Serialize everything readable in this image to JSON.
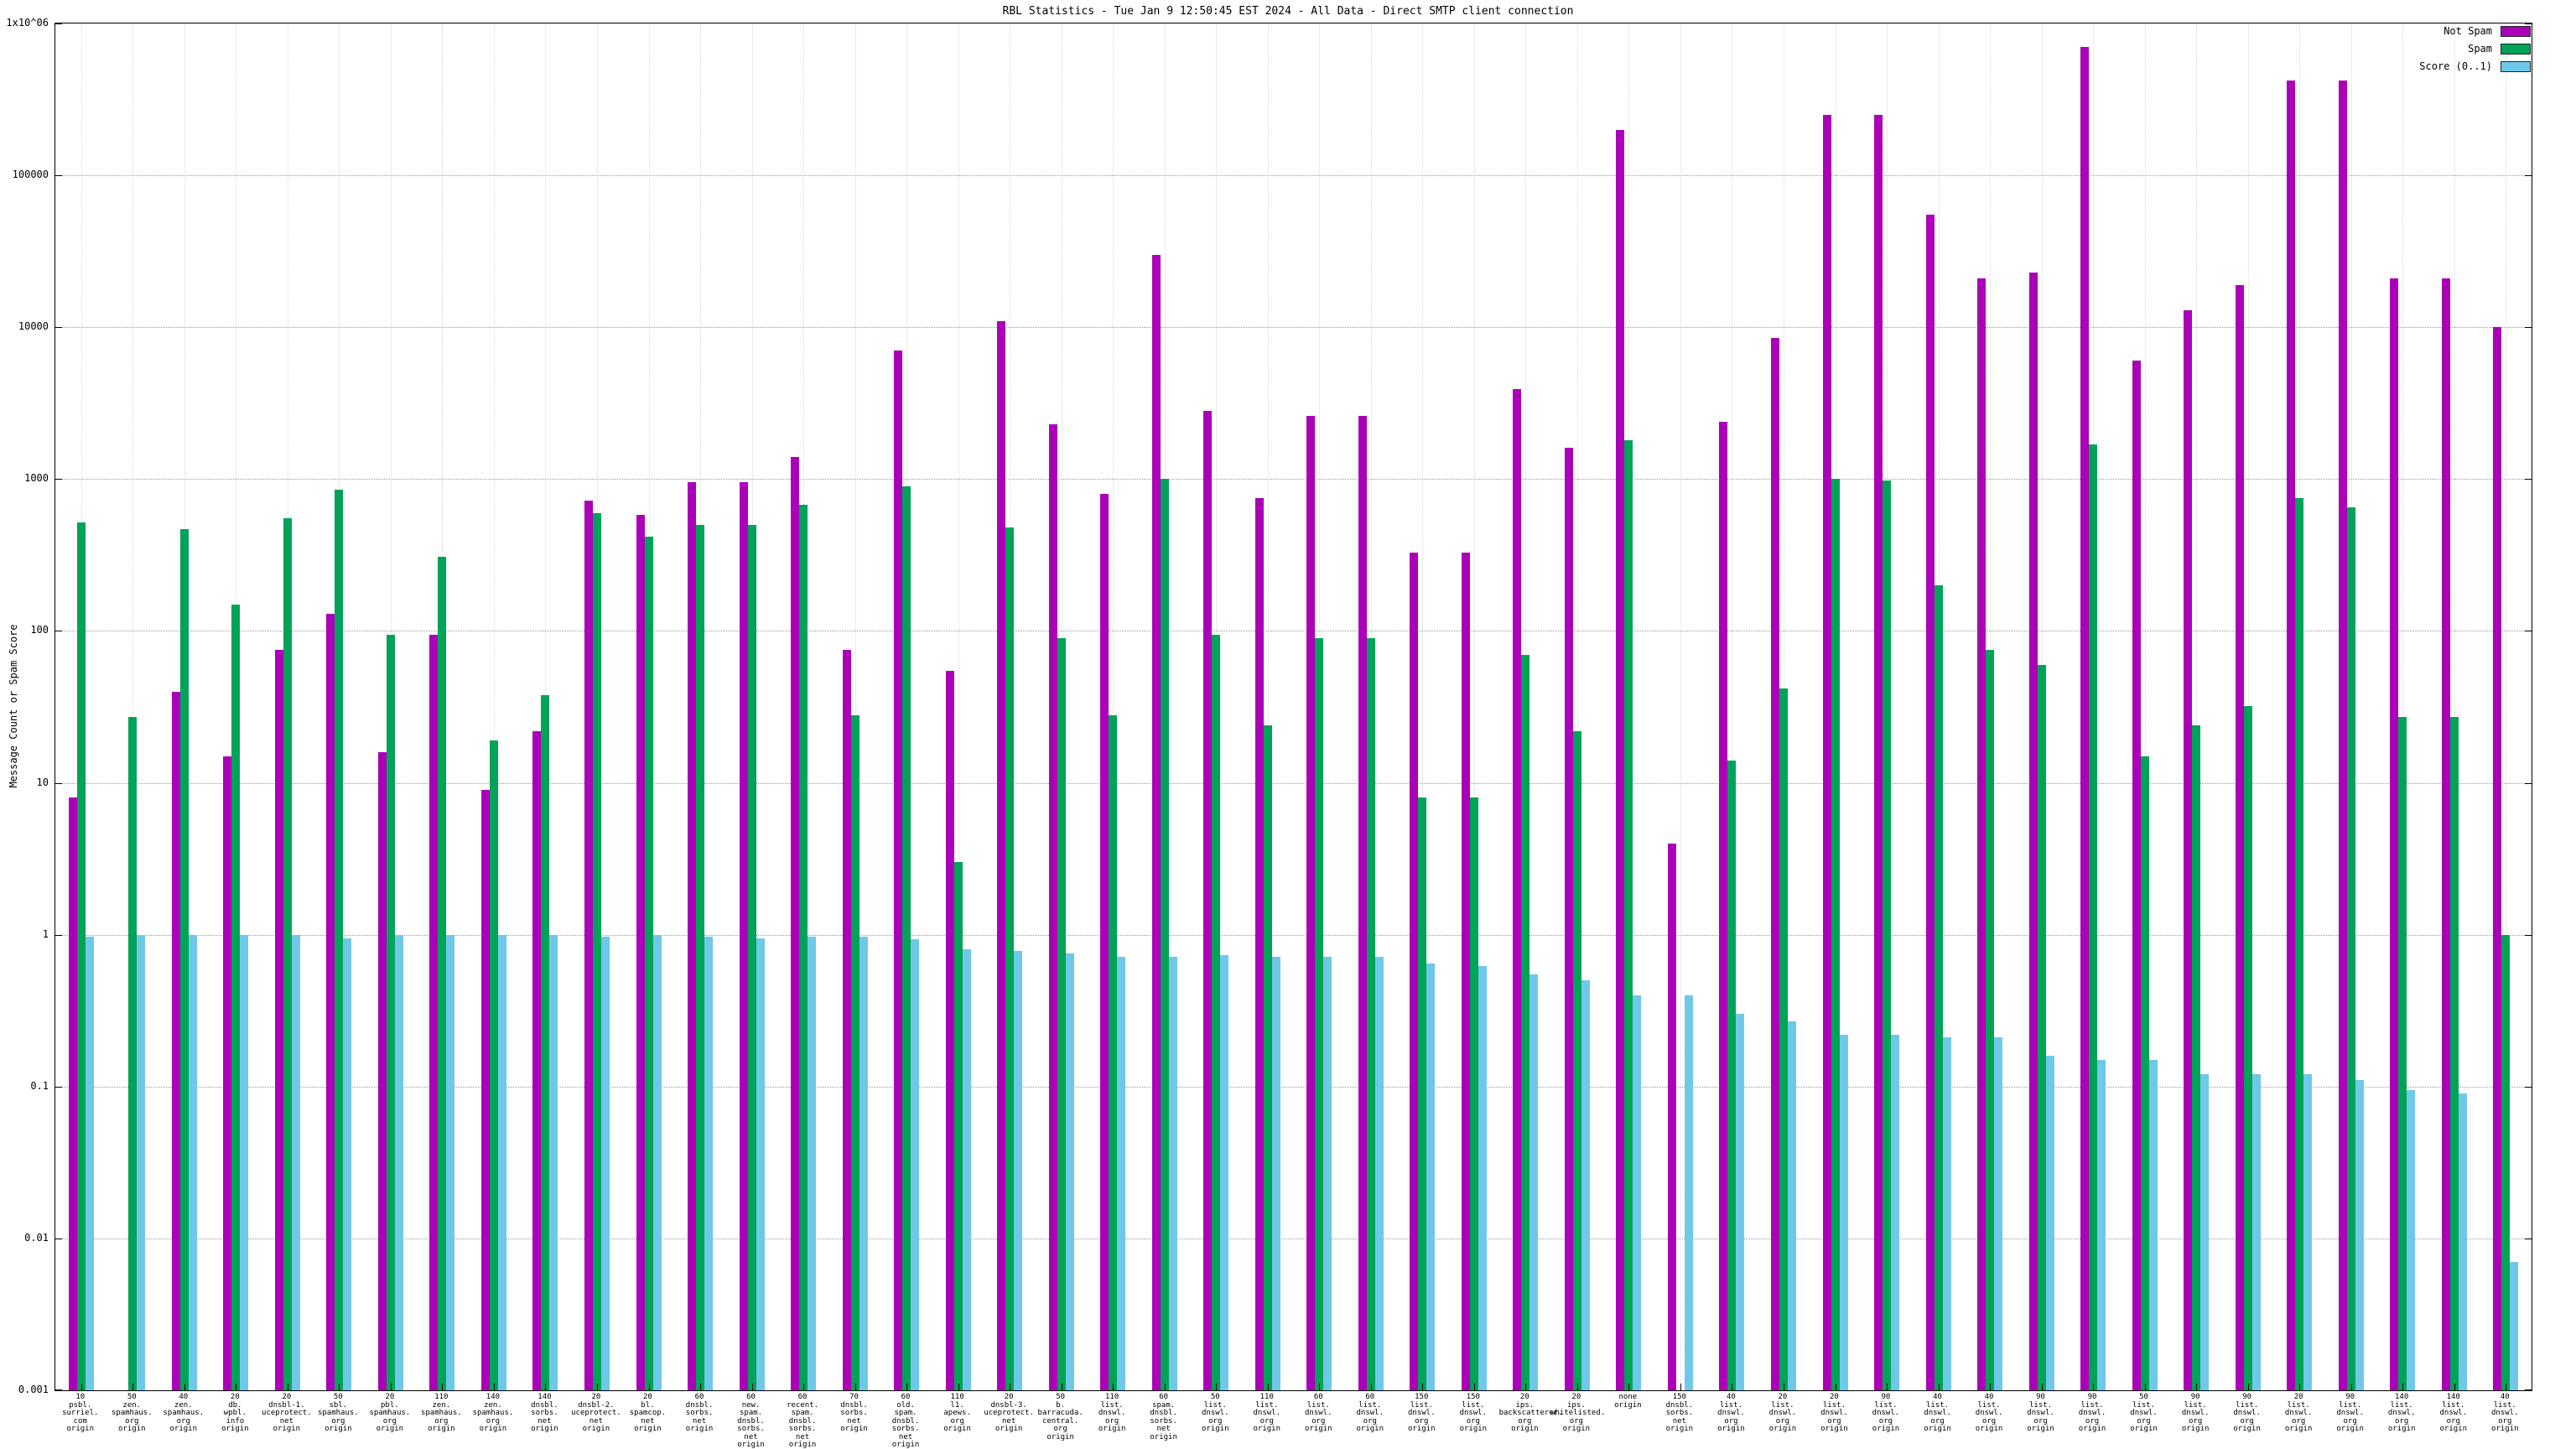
{
  "chart_data": {
    "type": "bar",
    "title": "RBL Statistics - Tue Jan 9 12:50:45 EST 2024 - All Data - Direct SMTP client connection",
    "ylabel": "Message Count or Spam Score",
    "xlabel": "",
    "yscale": "log",
    "ylim": [
      0.001,
      1000000
    ],
    "grid": true,
    "legend_position": "top-right",
    "series": [
      {
        "key": "not-spam",
        "name": "Not Spam",
        "color": "#AB00B8"
      },
      {
        "key": "spam",
        "name": "Spam",
        "color": "#00A357"
      },
      {
        "key": "score",
        "name": "Score (0..1)",
        "color": "#70C8E8"
      }
    ],
    "yticks": [
      {
        "label": "1x10^06",
        "value": 1000000
      },
      {
        "label": "100000",
        "value": 100000
      },
      {
        "label": "10000",
        "value": 10000
      },
      {
        "label": "1000",
        "value": 1000
      },
      {
        "label": "100",
        "value": 100
      },
      {
        "label": "10",
        "value": 10
      },
      {
        "label": "1",
        "value": 1
      },
      {
        "label": "0.1",
        "value": 0.1
      },
      {
        "label": "0.01",
        "value": 0.01
      },
      {
        "label": "0.001",
        "value": 0.001
      }
    ],
    "groups": [
      {
        "label": [
          "10",
          "psbl.",
          "surriel.",
          "com",
          "origin"
        ],
        "not_spam": 8,
        "spam": 520,
        "score": 0.97
      },
      {
        "label": [
          "50",
          "zen.",
          "spamhaus.",
          "org",
          "origin"
        ],
        "not_spam": 0,
        "spam": 27,
        "score": 1.0
      },
      {
        "label": [
          "40",
          "zen.",
          "spamhaus.",
          "org",
          "origin"
        ],
        "not_spam": 40,
        "spam": 470,
        "score": 1.0
      },
      {
        "label": [
          "20",
          "db.",
          "wpbl.",
          "info",
          "origin"
        ],
        "not_spam": 15,
        "spam": 150,
        "score": 1.0
      },
      {
        "label": [
          "20",
          "dnsbl-1.",
          "uceprotect.",
          "net",
          "origin"
        ],
        "not_spam": 75,
        "spam": 550,
        "score": 1.0
      },
      {
        "label": [
          "50",
          "sbl.",
          "spamhaus.",
          "org",
          "origin"
        ],
        "not_spam": 130,
        "spam": 850,
        "score": 0.95
      },
      {
        "label": [
          "20",
          "pbl.",
          "spamhaus.",
          "org",
          "origin"
        ],
        "not_spam": 16,
        "spam": 95,
        "score": 1.0
      },
      {
        "label": [
          "110",
          "zen.",
          "spamhaus.",
          "org",
          "origin"
        ],
        "not_spam": 95,
        "spam": 310,
        "score": 1.0
      },
      {
        "label": [
          "140",
          "zen.",
          "spamhaus.",
          "org",
          "origin"
        ],
        "not_spam": 9,
        "spam": 19,
        "score": 1.0
      },
      {
        "label": [
          "140",
          "dnsbl.",
          "sorbs.",
          "net",
          "origin"
        ],
        "not_spam": 22,
        "spam": 38,
        "score": 1.0
      },
      {
        "label": [
          "20",
          "dnsbl-2.",
          "uceprotect.",
          "net",
          "origin"
        ],
        "not_spam": 720,
        "spam": 600,
        "score": 0.97
      },
      {
        "label": [
          "20",
          "bl.",
          "spamcop.",
          "net",
          "origin"
        ],
        "not_spam": 580,
        "spam": 420,
        "score": 1.0
      },
      {
        "label": [
          "60",
          "dnsbl.",
          "sorbs.",
          "net",
          "origin"
        ],
        "not_spam": 950,
        "spam": 500,
        "score": 0.97
      },
      {
        "label": [
          "60",
          "new.",
          "spam.",
          "dnsbl.",
          "sorbs.",
          "net",
          "origin"
        ],
        "not_spam": 950,
        "spam": 500,
        "score": 0.95
      },
      {
        "label": [
          "60",
          "recent.",
          "spam.",
          "dnsbl.",
          "sorbs.",
          "net",
          "origin"
        ],
        "not_spam": 1400,
        "spam": 680,
        "score": 0.97
      },
      {
        "label": [
          "70",
          "dnsbl.",
          "sorbs.",
          "net",
          "origin"
        ],
        "not_spam": 75,
        "spam": 28,
        "score": 0.97
      },
      {
        "label": [
          "60",
          "old.",
          "spam.",
          "dnsbl.",
          "sorbs.",
          "net",
          "origin"
        ],
        "not_spam": 7000,
        "spam": 900,
        "score": 0.93
      },
      {
        "label": [
          "110",
          "l1.",
          "apews.",
          "org",
          "origin"
        ],
        "not_spam": 55,
        "spam": 3,
        "score": 0.8
      },
      {
        "label": [
          "20",
          "dnsbl-3.",
          "uceprotect.",
          "net",
          "origin"
        ],
        "not_spam": 11000,
        "spam": 480,
        "score": 0.78
      },
      {
        "label": [
          "50",
          "b.",
          "barracuda.",
          "central.",
          "org",
          "origin"
        ],
        "not_spam": 2300,
        "spam": 90,
        "score": 0.75
      },
      {
        "label": [
          "110",
          "list.",
          "dnswl.",
          "org",
          "origin"
        ],
        "not_spam": 800,
        "spam": 28,
        "score": 0.72
      },
      {
        "label": [
          "60",
          "spam.",
          "dnsbl.",
          "sorbs.",
          "net",
          "origin"
        ],
        "not_spam": 30000,
        "spam": 1000,
        "score": 0.72
      },
      {
        "label": [
          "50",
          "list.",
          "dnswl.",
          "org",
          "origin"
        ],
        "not_spam": 2800,
        "spam": 95,
        "score": 0.73
      },
      {
        "label": [
          "110",
          "list.",
          "dnswl.",
          "org",
          "origin"
        ],
        "not_spam": 750,
        "spam": 24,
        "score": 0.72
      },
      {
        "label": [
          "60",
          "list.",
          "dnswl.",
          "org",
          "origin"
        ],
        "not_spam": 2600,
        "spam": 90,
        "score": 0.72
      },
      {
        "label": [
          "60",
          "list.",
          "dnswl.",
          "org",
          "origin"
        ],
        "not_spam": 2600,
        "spam": 90,
        "score": 0.72
      },
      {
        "label": [
          "150",
          "list.",
          "dnswl.",
          "org",
          "origin"
        ],
        "not_spam": 330,
        "spam": 8,
        "score": 0.65
      },
      {
        "label": [
          "150",
          "list.",
          "dnswl.",
          "org",
          "origin"
        ],
        "not_spam": 330,
        "spam": 8,
        "score": 0.62
      },
      {
        "label": [
          "20",
          "ips.",
          "backscatterer.",
          "org",
          "origin"
        ],
        "not_spam": 3900,
        "spam": 70,
        "score": 0.55
      },
      {
        "label": [
          "20",
          "ips.",
          "whitelisted.",
          "org",
          "origin"
        ],
        "not_spam": 1600,
        "spam": 22,
        "score": 0.5
      },
      {
        "label": [
          "none",
          "origin"
        ],
        "not_spam": 200000,
        "spam": 1800,
        "score": 0.4
      },
      {
        "label": [
          "150",
          "dnsbl.",
          "sorbs.",
          "net",
          "origin"
        ],
        "not_spam": 4,
        "spam": 0,
        "score": 0.4
      },
      {
        "label": [
          "40",
          "list.",
          "dnswl.",
          "org",
          "origin"
        ],
        "not_spam": 2400,
        "spam": 14,
        "score": 0.3
      },
      {
        "label": [
          "20",
          "list.",
          "dnswl.",
          "org",
          "origin"
        ],
        "not_spam": 8500,
        "spam": 42,
        "score": 0.27
      },
      {
        "label": [
          "20",
          "list.",
          "dnswl.",
          "org",
          "origin"
        ],
        "not_spam": 250000,
        "spam": 1000,
        "score": 0.22
      },
      {
        "label": [
          "90",
          "list.",
          "dnswl.",
          "org",
          "origin"
        ],
        "not_spam": 250000,
        "spam": 980,
        "score": 0.22
      },
      {
        "label": [
          "40",
          "list.",
          "dnswl.",
          "org",
          "origin"
        ],
        "not_spam": 55000,
        "spam": 200,
        "score": 0.21
      },
      {
        "label": [
          "40",
          "list.",
          "dnswl.",
          "org",
          "origin"
        ],
        "not_spam": 21000,
        "spam": 75,
        "score": 0.21
      },
      {
        "label": [
          "90",
          "list.",
          "dnswl.",
          "org",
          "origin"
        ],
        "not_spam": 23000,
        "spam": 60,
        "score": 0.16
      },
      {
        "label": [
          "90",
          "list.",
          "dnswl.",
          "org",
          "origin"
        ],
        "not_spam": 700000,
        "spam": 1700,
        "score": 0.15
      },
      {
        "label": [
          "50",
          "list.",
          "dnswl.",
          "org",
          "origin"
        ],
        "not_spam": 6000,
        "spam": 15,
        "score": 0.15
      },
      {
        "label": [
          "90",
          "list.",
          "dnswl.",
          "org",
          "origin"
        ],
        "not_spam": 13000,
        "spam": 24,
        "score": 0.12
      },
      {
        "label": [
          "90",
          "list.",
          "dnswl.",
          "org",
          "origin"
        ],
        "not_spam": 19000,
        "spam": 32,
        "score": 0.12
      },
      {
        "label": [
          "20",
          "list.",
          "dnswl.",
          "org",
          "origin"
        ],
        "not_spam": 420000,
        "spam": 750,
        "score": 0.12
      },
      {
        "label": [
          "90",
          "list.",
          "dnswl.",
          "org",
          "origin"
        ],
        "not_spam": 420000,
        "spam": 650,
        "score": 0.11
      },
      {
        "label": [
          "140",
          "list.",
          "dnswl.",
          "org",
          "origin"
        ],
        "not_spam": 21000,
        "spam": 27,
        "score": 0.095
      },
      {
        "label": [
          "140",
          "list.",
          "dnswl.",
          "org",
          "origin"
        ],
        "not_spam": 21000,
        "spam": 27,
        "score": 0.09
      },
      {
        "label": [
          "40",
          "list.",
          "dnswl.",
          "org",
          "origin"
        ],
        "not_spam": 10000,
        "spam": 1,
        "score": 0.007
      }
    ]
  }
}
